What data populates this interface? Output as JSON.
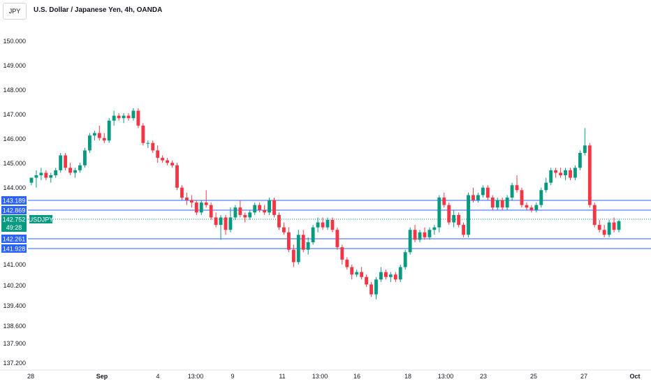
{
  "header": {
    "symbol_box": "JPY",
    "title": "U.S. Dollar / Japanese Yen, 4h, OANDA"
  },
  "colors": {
    "up": "#089981",
    "down": "#f23645",
    "line": "#2962ff",
    "price_tag": "#089981"
  },
  "chart_data": {
    "type": "candlestick",
    "title": "U.S. Dollar / Japanese Yen, 4h, OANDA",
    "y_ticks": [
      "150.000",
      "149.000",
      "148.000",
      "147.000",
      "146.000",
      "145.000",
      "144.000",
      "143.189",
      "142.869",
      "142.752",
      "142.261",
      "141.928",
      "141.000",
      "140.200",
      "139.400",
      "138.600",
      "137.900",
      "137.200"
    ],
    "x_ticks": [
      "28",
      "Sep",
      "4",
      "13:00",
      "9",
      "11",
      "13:00",
      "16",
      "18",
      "13:00",
      "23",
      "25",
      "27",
      "Oct"
    ],
    "current_price": {
      "symbol": "USDJPY",
      "value": "142.752",
      "countdown": "49:28"
    },
    "horizontal_levels": [
      "143.189",
      "142.869",
      "142.261",
      "141.928"
    ],
    "candles": [
      [
        144.3,
        144.5,
        144.2,
        144.5
      ],
      [
        144.5,
        144.8,
        144.1,
        144.6
      ],
      [
        144.6,
        144.9,
        144.4,
        144.7
      ],
      [
        144.7,
        144.8,
        144.4,
        144.5
      ],
      [
        144.5,
        144.7,
        144.3,
        144.6
      ],
      [
        144.6,
        144.9,
        144.5,
        144.8
      ],
      [
        144.8,
        145.5,
        144.7,
        145.4
      ],
      [
        145.4,
        145.5,
        144.8,
        144.9
      ],
      [
        144.9,
        145.1,
        144.6,
        144.7
      ],
      [
        144.7,
        144.9,
        144.5,
        144.8
      ],
      [
        144.8,
        145.1,
        144.7,
        145.0
      ],
      [
        145.0,
        145.7,
        144.9,
        145.6
      ],
      [
        145.6,
        146.3,
        145.5,
        146.2
      ],
      [
        146.2,
        146.4,
        146.0,
        146.3
      ],
      [
        146.3,
        146.6,
        146.0,
        146.1
      ],
      [
        146.1,
        146.3,
        145.9,
        146.0
      ],
      [
        146.0,
        146.9,
        145.9,
        146.8
      ],
      [
        146.8,
        147.2,
        146.6,
        147.0
      ],
      [
        147.0,
        147.1,
        146.8,
        146.9
      ],
      [
        146.9,
        147.1,
        146.7,
        147.0
      ],
      [
        147.0,
        147.1,
        146.8,
        146.9
      ],
      [
        146.9,
        147.3,
        146.8,
        147.2
      ],
      [
        147.2,
        147.3,
        146.5,
        146.6
      ],
      [
        146.6,
        146.7,
        145.8,
        145.9
      ],
      [
        145.9,
        146.0,
        145.7,
        145.9
      ],
      [
        145.9,
        146.0,
        145.5,
        145.6
      ],
      [
        145.6,
        145.8,
        145.1,
        145.3
      ],
      [
        145.3,
        145.4,
        145.1,
        145.2
      ],
      [
        145.2,
        145.3,
        145.0,
        145.1
      ],
      [
        145.1,
        145.2,
        144.9,
        145.0
      ],
      [
        145.0,
        145.1,
        144.0,
        144.1
      ],
      [
        144.1,
        144.2,
        143.6,
        143.7
      ],
      [
        143.7,
        143.9,
        143.4,
        143.6
      ],
      [
        143.6,
        143.8,
        143.3,
        143.5
      ],
      [
        143.5,
        143.6,
        143.0,
        143.1
      ],
      [
        143.1,
        143.6,
        143.0,
        143.5
      ],
      [
        143.5,
        144.0,
        143.3,
        143.4
      ],
      [
        143.4,
        143.5,
        142.8,
        142.9
      ],
      [
        142.9,
        143.1,
        142.5,
        142.6
      ],
      [
        142.6,
        143.0,
        142.0,
        142.9
      ],
      [
        142.9,
        143.0,
        142.2,
        142.4
      ],
      [
        142.4,
        143.3,
        142.3,
        142.9
      ],
      [
        142.9,
        143.4,
        142.8,
        143.3
      ],
      [
        143.3,
        143.6,
        142.9,
        143.0
      ],
      [
        143.0,
        143.1,
        142.7,
        142.9
      ],
      [
        142.9,
        143.2,
        142.8,
        143.1
      ],
      [
        143.1,
        143.5,
        143.0,
        143.4
      ],
      [
        143.4,
        143.5,
        143.1,
        143.2
      ],
      [
        143.2,
        143.4,
        143.0,
        143.1
      ],
      [
        143.1,
        143.7,
        143.0,
        143.6
      ],
      [
        143.6,
        143.7,
        142.9,
        143.0
      ],
      [
        143.0,
        143.1,
        142.4,
        142.5
      ],
      [
        142.5,
        142.7,
        142.2,
        142.3
      ],
      [
        142.3,
        142.5,
        141.5,
        141.6
      ],
      [
        141.6,
        141.8,
        140.9,
        141.1
      ],
      [
        141.1,
        142.4,
        141.0,
        142.2
      ],
      [
        142.2,
        142.4,
        141.5,
        141.6
      ],
      [
        141.6,
        142.1,
        141.4,
        141.9
      ],
      [
        141.9,
        142.6,
        141.8,
        142.5
      ],
      [
        142.5,
        142.9,
        142.3,
        142.7
      ],
      [
        142.7,
        142.9,
        142.4,
        142.5
      ],
      [
        142.5,
        142.9,
        142.4,
        142.8
      ],
      [
        142.8,
        142.9,
        142.3,
        142.4
      ],
      [
        142.4,
        142.5,
        141.6,
        141.7
      ],
      [
        141.7,
        141.8,
        141.0,
        141.2
      ],
      [
        141.2,
        141.3,
        140.8,
        140.9
      ],
      [
        140.9,
        141.0,
        140.4,
        140.6
      ],
      [
        140.6,
        140.8,
        140.5,
        140.7
      ],
      [
        140.7,
        140.9,
        140.4,
        140.5
      ],
      [
        140.5,
        140.6,
        140.1,
        140.2
      ],
      [
        140.2,
        140.3,
        139.7,
        139.8
      ],
      [
        139.8,
        140.5,
        139.6,
        140.4
      ],
      [
        140.4,
        140.9,
        140.3,
        140.7
      ],
      [
        140.7,
        140.8,
        140.4,
        140.5
      ],
      [
        140.5,
        140.7,
        140.3,
        140.6
      ],
      [
        140.6,
        140.7,
        140.3,
        140.4
      ],
      [
        140.4,
        141.0,
        140.3,
        140.9
      ],
      [
        140.9,
        141.6,
        140.8,
        141.5
      ],
      [
        141.5,
        142.5,
        141.4,
        142.4
      ],
      [
        142.4,
        142.6,
        141.9,
        142.0
      ],
      [
        142.0,
        142.4,
        141.9,
        142.3
      ],
      [
        142.3,
        142.5,
        142.0,
        142.1
      ],
      [
        142.1,
        142.5,
        142.0,
        142.4
      ],
      [
        142.4,
        142.6,
        142.2,
        142.5
      ],
      [
        142.5,
        143.8,
        142.3,
        143.7
      ],
      [
        143.7,
        143.9,
        143.3,
        143.4
      ],
      [
        143.4,
        143.5,
        142.6,
        142.7
      ],
      [
        142.7,
        143.2,
        142.5,
        143.0
      ],
      [
        143.0,
        143.1,
        142.5,
        142.6
      ],
      [
        142.6,
        142.7,
        142.1,
        142.2
      ],
      [
        142.2,
        143.9,
        142.1,
        143.8
      ],
      [
        143.8,
        144.1,
        143.5,
        143.6
      ],
      [
        143.6,
        143.9,
        143.5,
        143.8
      ],
      [
        143.8,
        144.2,
        143.7,
        144.1
      ],
      [
        144.1,
        144.2,
        143.6,
        143.7
      ],
      [
        143.7,
        143.8,
        143.2,
        143.3
      ],
      [
        143.3,
        143.7,
        143.2,
        143.6
      ],
      [
        143.6,
        143.7,
        143.2,
        143.3
      ],
      [
        143.3,
        143.8,
        143.2,
        143.7
      ],
      [
        143.7,
        144.3,
        143.6,
        144.2
      ],
      [
        144.2,
        144.6,
        143.9,
        144.0
      ],
      [
        144.0,
        144.1,
        143.3,
        143.4
      ],
      [
        143.4,
        143.5,
        143.2,
        143.3
      ],
      [
        143.3,
        143.4,
        143.1,
        143.2
      ],
      [
        143.2,
        143.5,
        143.1,
        143.4
      ],
      [
        143.4,
        144.1,
        143.3,
        144.0
      ],
      [
        144.0,
        144.5,
        143.9,
        144.3
      ],
      [
        144.3,
        144.9,
        144.2,
        144.8
      ],
      [
        144.8,
        144.9,
        144.5,
        144.7
      ],
      [
        144.7,
        144.9,
        144.5,
        144.6
      ],
      [
        144.6,
        144.9,
        144.4,
        144.8
      ],
      [
        144.8,
        144.9,
        144.4,
        144.5
      ],
      [
        144.5,
        145.0,
        144.4,
        144.9
      ],
      [
        144.9,
        145.6,
        144.8,
        145.5
      ],
      [
        145.5,
        146.5,
        145.4,
        145.8
      ],
      [
        145.8,
        145.9,
        143.3,
        143.4
      ],
      [
        143.4,
        143.5,
        142.5,
        142.6
      ],
      [
        142.6,
        142.8,
        142.3,
        142.4
      ],
      [
        142.4,
        142.6,
        142.1,
        142.2
      ],
      [
        142.2,
        142.8,
        142.1,
        142.7
      ],
      [
        142.7,
        142.9,
        142.3,
        142.4
      ],
      [
        142.4,
        142.8,
        142.3,
        142.75
      ]
    ]
  }
}
